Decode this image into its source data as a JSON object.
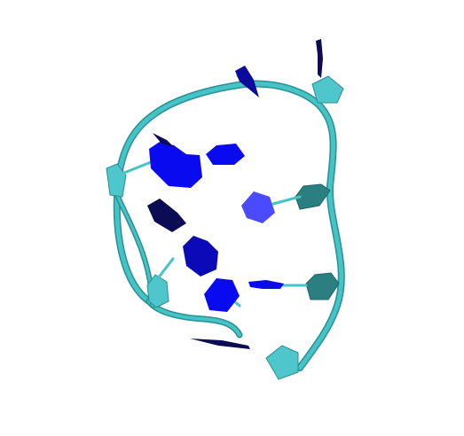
{
  "scene": {
    "description_visible_text": "",
    "style": "ribbon-and-sugar cartoon",
    "colors": {
      "background": "#ffffff",
      "backbone": "#45c4c8",
      "backbone_shadow": "#2a8f93",
      "sugar_light": "#4fc6cb",
      "sugar_dark": "#2c7f80",
      "base_bright": "#0a0af0",
      "base_light": "#4a4aff",
      "base_mid": "#0a0ab8",
      "base_dark": "#0c0c55"
    },
    "elements": {
      "backbone": "backbone-ribbon",
      "sugars": [
        "sugar-top-right",
        "sugar-left",
        "sugar-right-upper",
        "sugar-right-lower",
        "sugar-left-lower",
        "sugar-bottom"
      ],
      "bases": [
        "base-top",
        "base-purine-upper-left",
        "base-pyrimidine-upper",
        "base-single-right",
        "base-dark-mid-left",
        "base-purine-mid",
        "base-hexagon-lower",
        "base-flat-right",
        "base-spike-top-right",
        "base-dark-streak-bottom"
      ]
    }
  }
}
